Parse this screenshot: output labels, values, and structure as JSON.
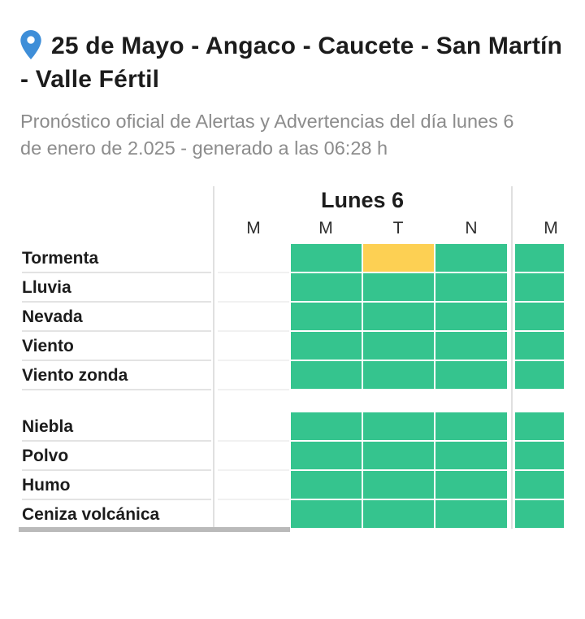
{
  "header": {
    "title": "25 de Mayo - Angaco - Caucete - San Martín - Valle Fértil",
    "subtitle": "Pronóstico oficial de Alertas y Advertencias del día lunes 6 de enero de 2.025 - generado a las 06:28 h",
    "pin_icon": "location-pin",
    "pin_color": "#3e8ed8"
  },
  "table": {
    "day_header": "Lunes 6",
    "column_headers": [
      "M",
      "M",
      "T",
      "N",
      "M"
    ],
    "status_colors": {
      "green": "#35c48e",
      "yellow": "#fdd053",
      "none": ""
    },
    "sections": [
      {
        "rows": [
          {
            "label": "Tormenta",
            "cells": [
              "none",
              "green",
              "yellow",
              "green",
              "green"
            ]
          },
          {
            "label": "Lluvia",
            "cells": [
              "none",
              "green",
              "green",
              "green",
              "green"
            ]
          },
          {
            "label": "Nevada",
            "cells": [
              "none",
              "green",
              "green",
              "green",
              "green"
            ]
          },
          {
            "label": "Viento",
            "cells": [
              "none",
              "green",
              "green",
              "green",
              "green"
            ]
          },
          {
            "label": "Viento zonda",
            "cells": [
              "none",
              "green",
              "green",
              "green",
              "green"
            ]
          }
        ]
      },
      {
        "rows": [
          {
            "label": "Niebla",
            "cells": [
              "none",
              "green",
              "green",
              "green",
              "green"
            ]
          },
          {
            "label": "Polvo",
            "cells": [
              "none",
              "green",
              "green",
              "green",
              "green"
            ]
          },
          {
            "label": "Humo",
            "cells": [
              "none",
              "green",
              "green",
              "green",
              "green"
            ]
          },
          {
            "label": "Ceniza volcánica",
            "cells": [
              "none",
              "green",
              "green",
              "green",
              "green"
            ]
          }
        ]
      }
    ]
  }
}
